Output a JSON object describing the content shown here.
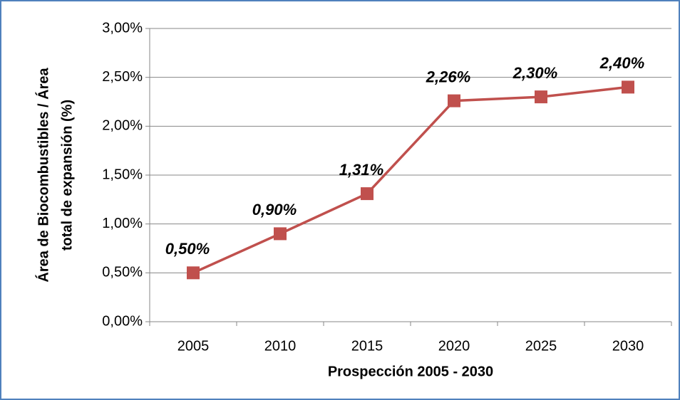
{
  "chart_data": {
    "type": "line",
    "xlabel": "Prospección 2005 - 2030",
    "ylabel": [
      "Área de Biocombustibles / Área",
      "total de expansión (%)"
    ],
    "categories": [
      "2005",
      "2010",
      "2015",
      "2020",
      "2025",
      "2030"
    ],
    "series": [
      {
        "name": "Área de Biocombustibles / Área total de expansión",
        "color": "#c0504d",
        "values": [
          0.5,
          0.9,
          1.31,
          2.26,
          2.3,
          2.4
        ],
        "value_labels": [
          "0,50%",
          "0,90%",
          "1,31%",
          "2,26%",
          "2,30%",
          "2,40%"
        ]
      }
    ],
    "ylim": [
      0,
      3
    ],
    "yticks": [
      {
        "value": 0,
        "label": "0,00%"
      },
      {
        "value": 0.5,
        "label": "0,50%"
      },
      {
        "value": 1,
        "label": "1,00%"
      },
      {
        "value": 1.5,
        "label": "1,50%"
      },
      {
        "value": 2,
        "label": "2,00%"
      },
      {
        "value": 2.5,
        "label": "2,50%"
      },
      {
        "value": 3,
        "label": "3,00%"
      }
    ],
    "grid": true
  }
}
